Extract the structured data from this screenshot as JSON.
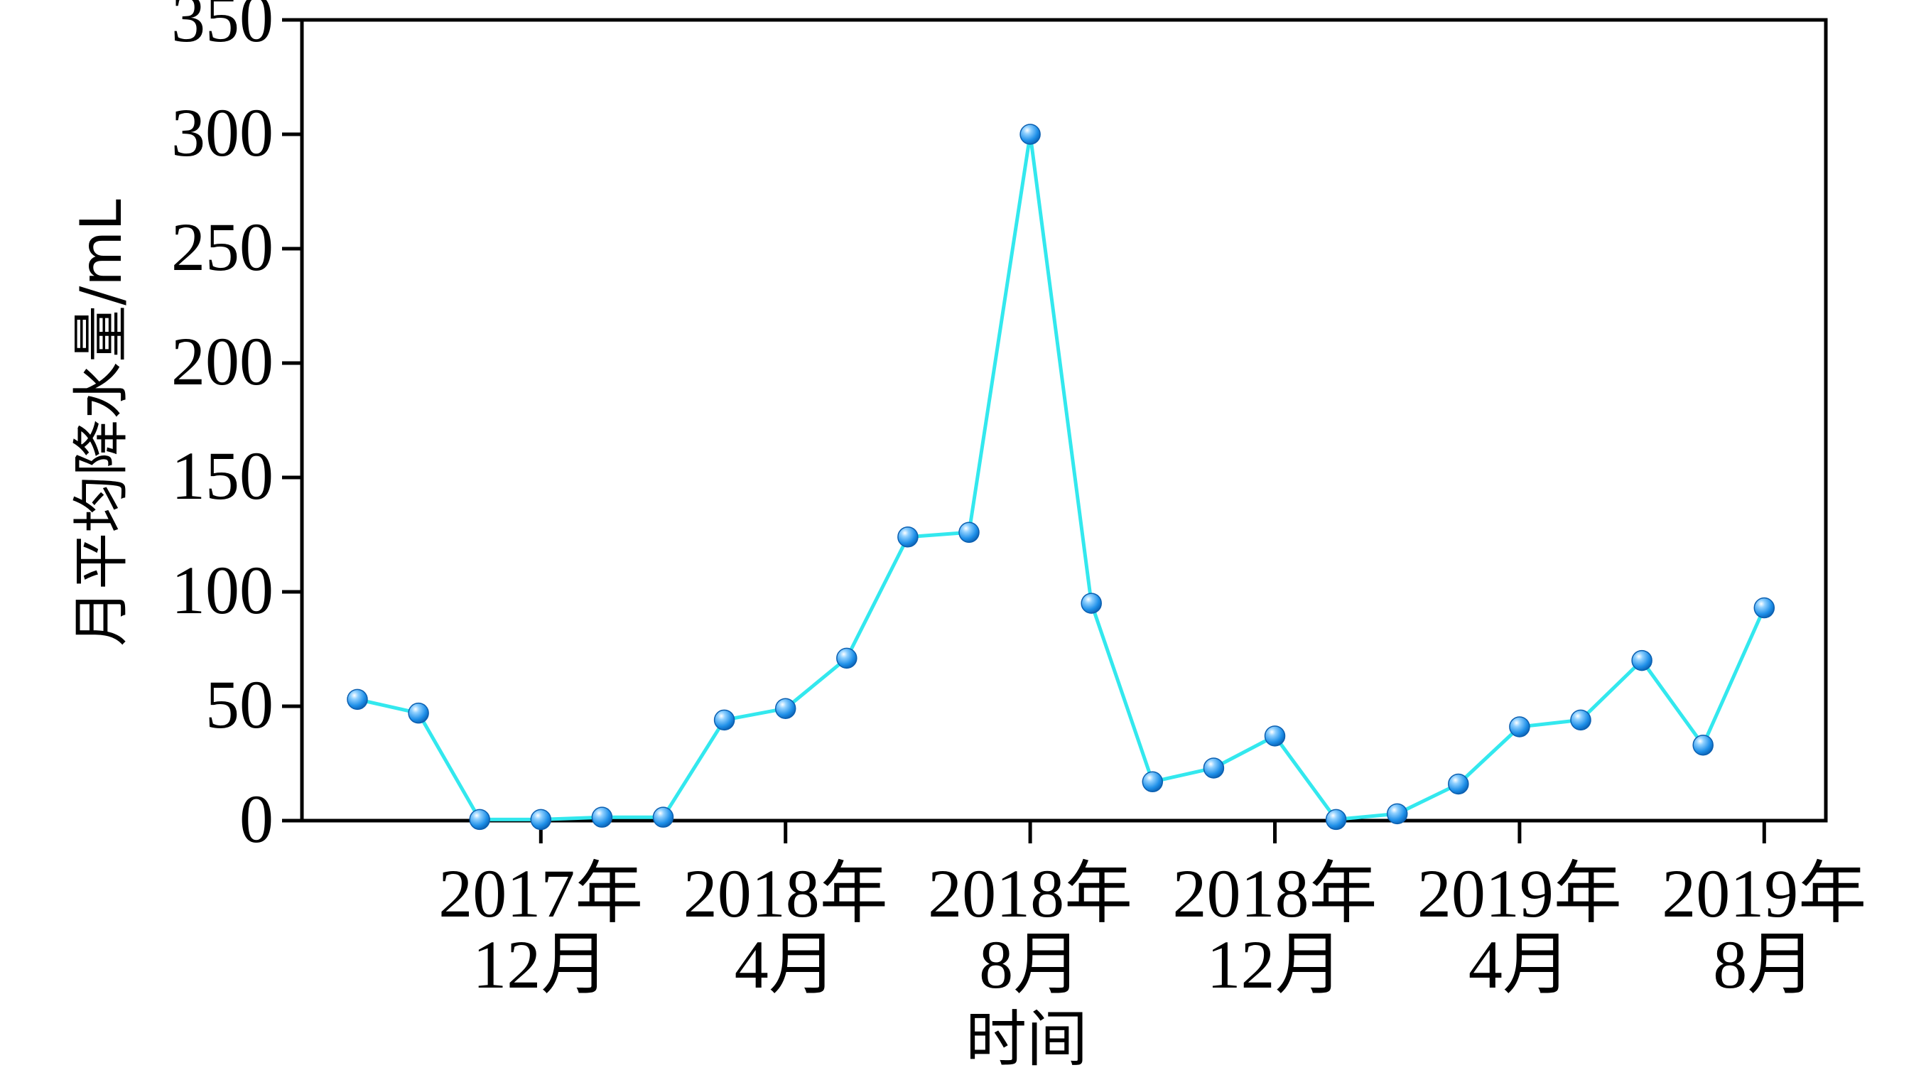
{
  "chart_data": {
    "type": "line",
    "xlabel": "时间",
    "ylabel": "月平均降水量/mL",
    "ylim": [
      0,
      350
    ],
    "yticks": [
      0,
      50,
      100,
      150,
      200,
      250,
      300,
      350
    ],
    "xticks": [
      {
        "line1": "2017年",
        "line2": "12月",
        "month": "2017-12"
      },
      {
        "line1": "2018年",
        "line2": "4月",
        "month": "2018-04"
      },
      {
        "line1": "2018年",
        "line2": "8月",
        "month": "2018-08"
      },
      {
        "line1": "2018年",
        "line2": "12月",
        "month": "2018-12"
      },
      {
        "line1": "2019年",
        "line2": "4月",
        "month": "2019-04"
      },
      {
        "line1": "2019年",
        "line2": "8月",
        "month": "2019-08"
      }
    ],
    "x": [
      "2017-09",
      "2017-10",
      "2017-11",
      "2017-12",
      "2018-01",
      "2018-02",
      "2018-03",
      "2018-04",
      "2018-05",
      "2018-06",
      "2018-07",
      "2018-08",
      "2018-09",
      "2018-10",
      "2018-11",
      "2018-12",
      "2019-01",
      "2019-02",
      "2019-03",
      "2019-04",
      "2019-05",
      "2019-06",
      "2019-07",
      "2019-08"
    ],
    "series": [
      {
        "values": [
          53,
          47,
          0.5,
          0.5,
          1.5,
          1.5,
          44,
          49,
          71,
          124,
          126,
          300,
          95,
          17,
          23,
          37,
          0.5,
          3,
          16,
          41,
          44,
          70,
          33,
          93
        ],
        "line_color": "#33e8ee",
        "marker_color": "#1e8fe8"
      }
    ],
    "grid": false,
    "legend": "none"
  }
}
